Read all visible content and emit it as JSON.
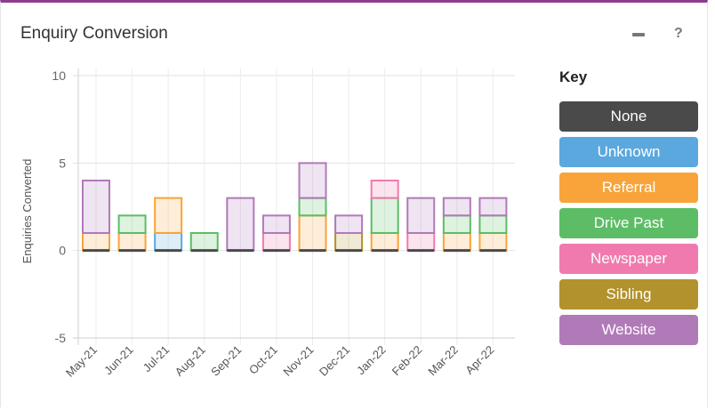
{
  "widget": {
    "title": "Enquiry Conversion",
    "minimize_icon": "minimize-icon",
    "help_label": "?"
  },
  "key": {
    "title": "Key",
    "items": [
      {
        "label": "None",
        "color": "#4a4a4a"
      },
      {
        "label": "Unknown",
        "color": "#5ba8de"
      },
      {
        "label": "Referral",
        "color": "#f8a43a"
      },
      {
        "label": "Drive Past",
        "color": "#5cbd66"
      },
      {
        "label": "Newspaper",
        "color": "#f07aae"
      },
      {
        "label": "Sibling",
        "color": "#b2922c"
      },
      {
        "label": "Website",
        "color": "#b07ab8"
      }
    ]
  },
  "chart_data": {
    "type": "bar",
    "stacked": true,
    "ylabel": "Enquiries Converted",
    "xlabel": "",
    "ylim": [
      -5,
      10
    ],
    "yticks": [
      10,
      5,
      0,
      -5
    ],
    "grid": true,
    "legend_position": "right",
    "categories": [
      "May-21",
      "Jun-21",
      "Jul-21",
      "Aug-21",
      "Sep-21",
      "Oct-21",
      "Nov-21",
      "Dec-21",
      "Jan-22",
      "Feb-22",
      "Mar-22",
      "Apr-22"
    ],
    "series": [
      {
        "name": "None",
        "color": "#4a4a4a",
        "values": [
          0,
          0,
          0,
          0,
          0,
          0,
          0,
          0,
          0,
          0,
          0,
          0
        ]
      },
      {
        "name": "Unknown",
        "color": "#5ba8de",
        "values": [
          0,
          0,
          1,
          0,
          0,
          0,
          0,
          0,
          0,
          0,
          0,
          0
        ]
      },
      {
        "name": "Referral",
        "color": "#f8a43a",
        "values": [
          1,
          1,
          2,
          0,
          0,
          0,
          2,
          0,
          1,
          0,
          1,
          1
        ]
      },
      {
        "name": "Drive Past",
        "color": "#5cbd66",
        "values": [
          0,
          1,
          0,
          1,
          0,
          0,
          1,
          0,
          2,
          0,
          1,
          1
        ]
      },
      {
        "name": "Newspaper",
        "color": "#f07aae",
        "values": [
          0,
          0,
          0,
          0,
          0,
          1,
          0,
          0,
          1,
          1,
          0,
          0
        ]
      },
      {
        "name": "Sibling",
        "color": "#b2922c",
        "values": [
          0,
          0,
          0,
          0,
          0,
          0,
          0,
          1,
          0,
          0,
          0,
          0
        ]
      },
      {
        "name": "Website",
        "color": "#b07ab8",
        "values": [
          3,
          0,
          0,
          0,
          3,
          1,
          2,
          1,
          0,
          2,
          1,
          1
        ]
      }
    ]
  }
}
